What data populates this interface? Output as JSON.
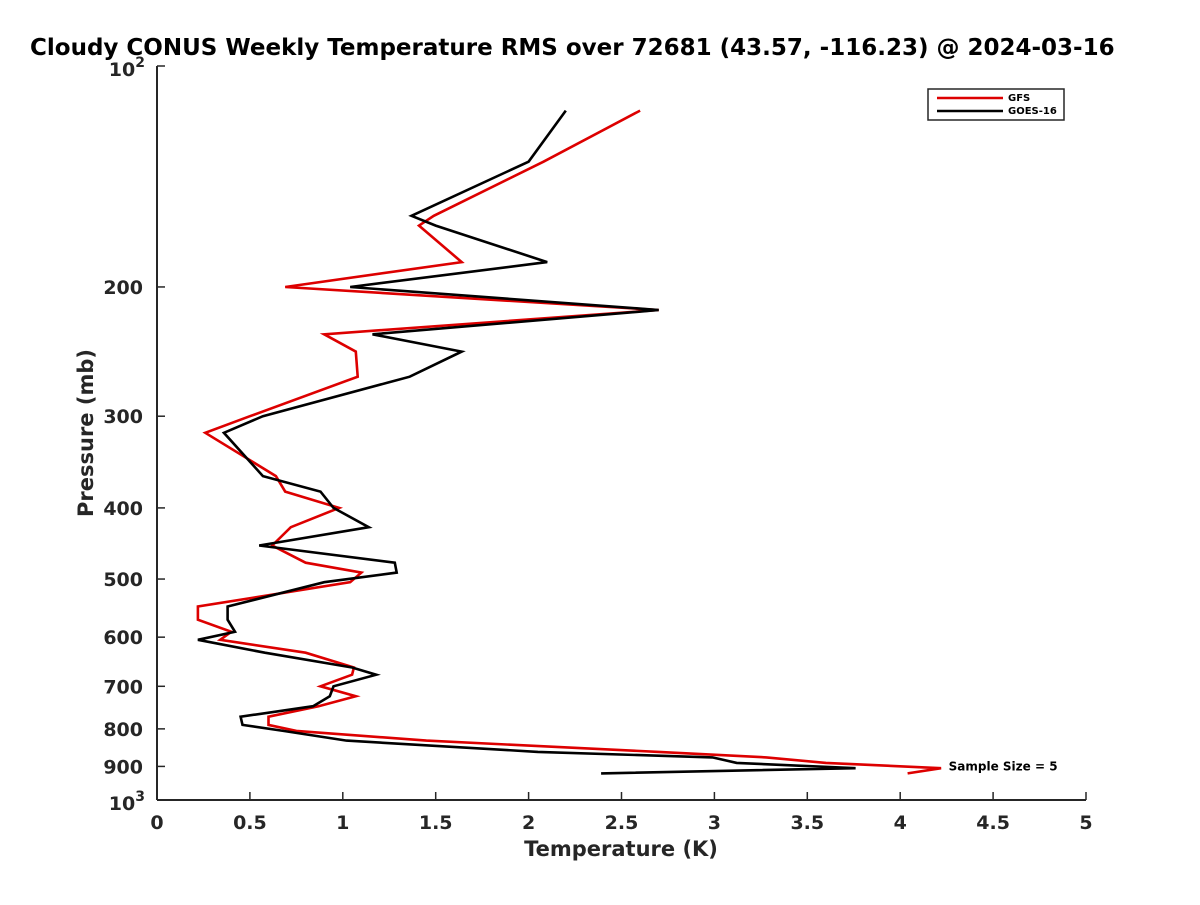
{
  "chart_data": {
    "type": "line",
    "title": "Cloudy CONUS Weekly Temperature RMS over 72681 (43.57, -116.23) @ 2024-03-16",
    "xlabel": "Temperature (K)",
    "ylabel": "Pressure (mb)",
    "xlim": [
      0,
      5
    ],
    "ylim": [
      100,
      1000
    ],
    "y_scale": "log",
    "y_reversed": true,
    "grid": false,
    "legend_placement": "top-right",
    "x_ticks": [
      0,
      0.5,
      1,
      1.5,
      2,
      2.5,
      3,
      3.5,
      4,
      4.5,
      5
    ],
    "x_tick_labels": [
      "0",
      "0.5",
      "1",
      "1.5",
      "2",
      "2.5",
      "3",
      "3.5",
      "4",
      "4.5",
      "5"
    ],
    "y_ticks": [
      200,
      300,
      400,
      500,
      600,
      700,
      800,
      900
    ],
    "y_tick_labels": [
      "200",
      "300",
      "400",
      "500",
      "600",
      "700",
      "800",
      "900"
    ],
    "y_decade_ticks": [
      {
        "value": 100,
        "base": "10",
        "exp": "2"
      },
      {
        "value": 1000,
        "base": "10",
        "exp": "3"
      }
    ],
    "annotation": {
      "text": "Sample Size = 5",
      "x": 4.25,
      "y": 900
    },
    "series": [
      {
        "name": "GFS",
        "color": "#dd0000",
        "points": [
          [
            2.6,
            115
          ],
          [
            2.08,
            135
          ],
          [
            1.49,
            160
          ],
          [
            1.41,
            165
          ],
          [
            1.64,
            185
          ],
          [
            0.69,
            200
          ],
          [
            2.7,
            215
          ],
          [
            0.9,
            232
          ],
          [
            1.07,
            245
          ],
          [
            1.08,
            265
          ],
          [
            0.5,
            300
          ],
          [
            0.26,
            316
          ],
          [
            0.64,
            362
          ],
          [
            0.69,
            380
          ],
          [
            0.98,
            400
          ],
          [
            0.72,
            425
          ],
          [
            0.62,
            450
          ],
          [
            0.8,
            475
          ],
          [
            1.1,
            490
          ],
          [
            1.04,
            505
          ],
          [
            0.22,
            545
          ],
          [
            0.22,
            568
          ],
          [
            0.4,
            590
          ],
          [
            0.34,
            605
          ],
          [
            0.8,
            630
          ],
          [
            1.06,
            660
          ],
          [
            1.05,
            675
          ],
          [
            0.88,
            700
          ],
          [
            1.07,
            722
          ],
          [
            0.87,
            745
          ],
          [
            0.6,
            770
          ],
          [
            0.6,
            790
          ],
          [
            0.75,
            805
          ],
          [
            1.45,
            830
          ],
          [
            2.7,
            860
          ],
          [
            3.28,
            875
          ],
          [
            3.6,
            890
          ],
          [
            4.22,
            905
          ],
          [
            4.04,
            920
          ]
        ]
      },
      {
        "name": "GOES-16",
        "color": "#000000",
        "points": [
          [
            2.2,
            115
          ],
          [
            2.0,
            135
          ],
          [
            1.37,
            160
          ],
          [
            1.5,
            165
          ],
          [
            2.1,
            185
          ],
          [
            1.04,
            200
          ],
          [
            2.7,
            215
          ],
          [
            1.16,
            232
          ],
          [
            1.64,
            245
          ],
          [
            1.36,
            265
          ],
          [
            0.57,
            300
          ],
          [
            0.36,
            316
          ],
          [
            0.57,
            362
          ],
          [
            0.88,
            380
          ],
          [
            0.95,
            400
          ],
          [
            1.14,
            425
          ],
          [
            0.55,
            450
          ],
          [
            1.28,
            475
          ],
          [
            1.29,
            490
          ],
          [
            0.9,
            505
          ],
          [
            0.38,
            545
          ],
          [
            0.38,
            568
          ],
          [
            0.42,
            590
          ],
          [
            0.22,
            605
          ],
          [
            0.58,
            630
          ],
          [
            1.05,
            660
          ],
          [
            1.18,
            675
          ],
          [
            0.95,
            700
          ],
          [
            0.93,
            722
          ],
          [
            0.84,
            745
          ],
          [
            0.45,
            770
          ],
          [
            0.46,
            790
          ],
          [
            0.68,
            805
          ],
          [
            1.02,
            830
          ],
          [
            2.05,
            860
          ],
          [
            2.99,
            875
          ],
          [
            3.12,
            890
          ],
          [
            3.76,
            905
          ],
          [
            2.39,
            920
          ]
        ]
      }
    ]
  }
}
